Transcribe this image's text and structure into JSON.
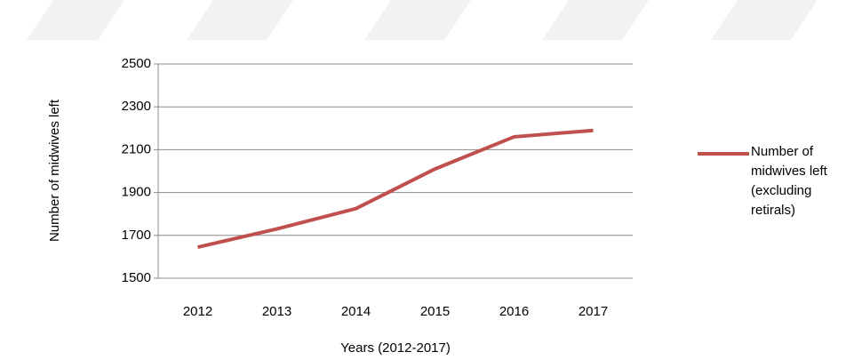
{
  "chart_data": {
    "type": "line",
    "categories": [
      "2012",
      "2013",
      "2014",
      "2015",
      "2016",
      "2017"
    ],
    "series": [
      {
        "name": "Number of midwives left (excluding retirals)",
        "color": "#c0504d",
        "values": [
          1645,
          1730,
          1825,
          2010,
          2160,
          2190
        ]
      }
    ],
    "ylim": [
      1500,
      2500
    ],
    "yticks": [
      1500,
      1700,
      1900,
      2100,
      2300,
      2500
    ],
    "xlabel": "Years (2012-2017)",
    "ylabel": "Number of midwives left",
    "grid": true,
    "legend": "right"
  }
}
